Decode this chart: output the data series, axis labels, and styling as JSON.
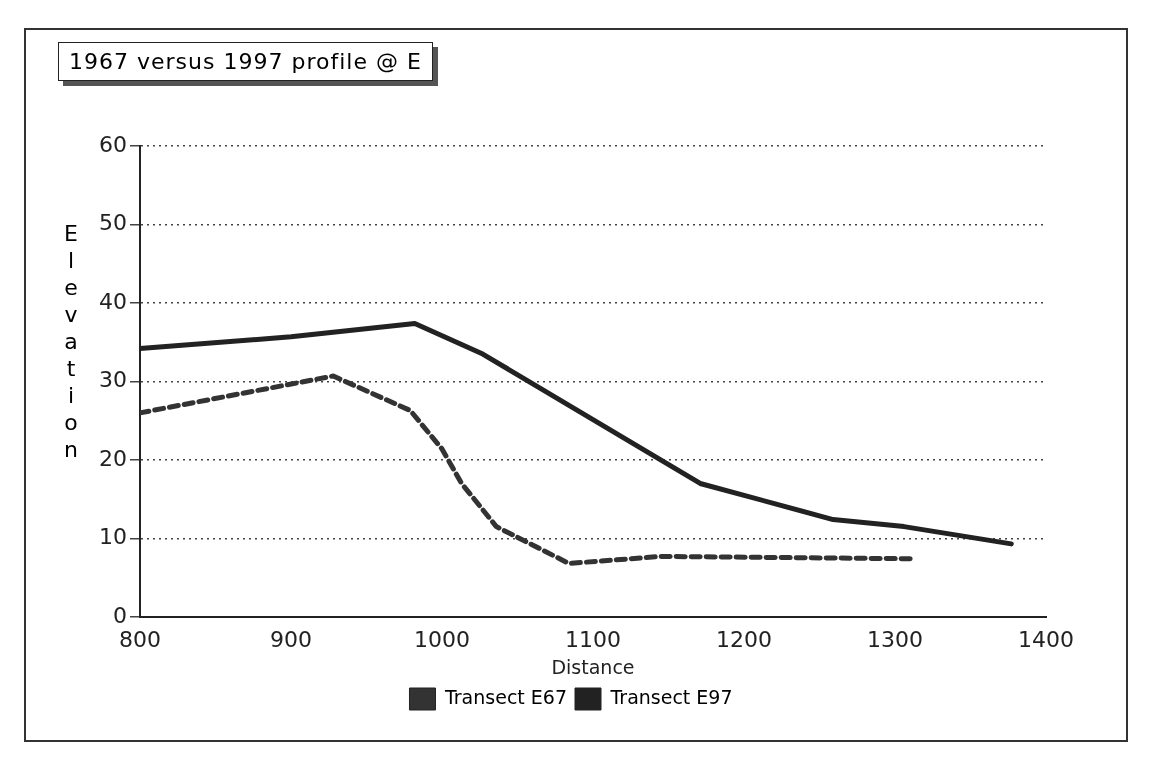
{
  "chart_data": {
    "type": "line",
    "title": "1967 versus 1997 profile @ E",
    "xlabel": "Distance",
    "ylabel": "Elevation",
    "xlim": [
      800,
      1400
    ],
    "xticks": [
      800,
      900,
      1000,
      1100,
      1200,
      1300,
      1400
    ],
    "ylim": [
      0,
      60
    ],
    "yticks": [
      0,
      10,
      20,
      30,
      40,
      50,
      60
    ],
    "grid": "y",
    "legend": "bottom",
    "marker": "none",
    "series": [
      {
        "name": "Transect E67",
        "color": "#333333",
        "line_style": "dashed",
        "x": [
          800,
          928,
          979,
          1000,
          1013,
          1036,
          1084,
          1145,
          1311
        ],
        "values": [
          26.0,
          30.7,
          26.3,
          21.4,
          17.0,
          11.5,
          6.8,
          7.7,
          7.4
        ]
      },
      {
        "name": "Transect E97",
        "color": "#222222",
        "line_style": "solid",
        "x": [
          800,
          900,
          982,
          1027,
          1171,
          1259,
          1306,
          1377
        ],
        "values": [
          34.2,
          35.7,
          37.4,
          33.5,
          17.0,
          12.4,
          11.5,
          9.3
        ]
      }
    ]
  }
}
